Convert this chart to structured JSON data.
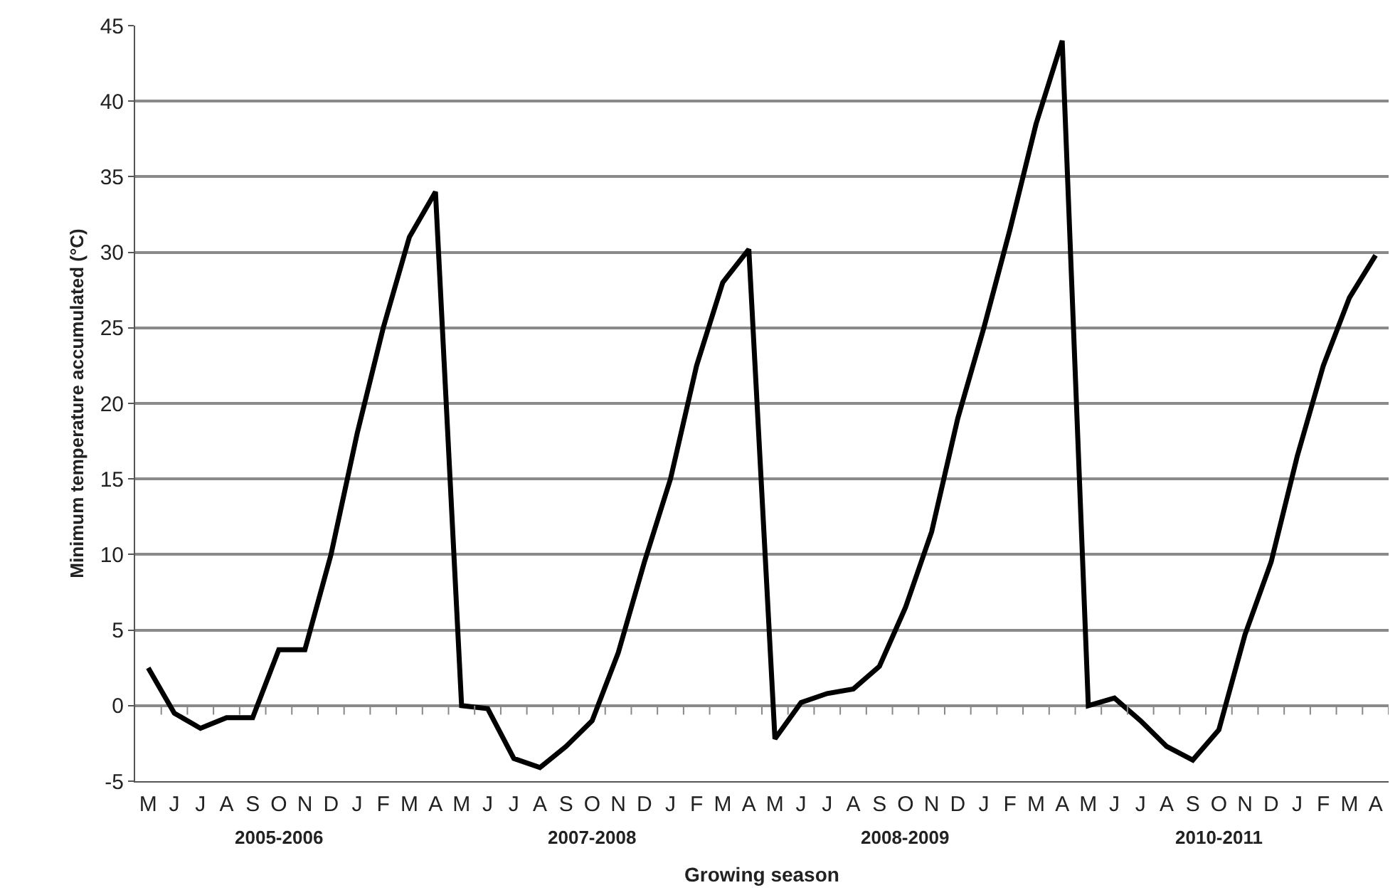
{
  "chart_data": {
    "type": "line",
    "xlabel": "Growing season",
    "ylabel": "Minimum temperature accumulated (°C)",
    "categories": [
      "M",
      "J",
      "J",
      "A",
      "S",
      "O",
      "N",
      "D",
      "J",
      "F",
      "M",
      "A",
      "M",
      "J",
      "J",
      "A",
      "S",
      "O",
      "N",
      "D",
      "J",
      "F",
      "M",
      "A",
      "M",
      "J",
      "J",
      "A",
      "S",
      "O",
      "N",
      "D",
      "J",
      "F",
      "M",
      "A",
      "M",
      "J",
      "J",
      "A",
      "S",
      "O",
      "N",
      "D",
      "J",
      "F",
      "M",
      "A"
    ],
    "series": [
      {
        "color": "#000000",
        "values": [
          2.5,
          -0.5,
          -1.5,
          -0.8,
          -0.8,
          3.7,
          3.7,
          10,
          18,
          25,
          31,
          34,
          0,
          -0.2,
          -3.5,
          -4.1,
          -2.7,
          -1,
          3.5,
          9.5,
          15,
          22.5,
          28,
          30.2,
          -2.2,
          0.2,
          0.8,
          1.1,
          2.6,
          6.5,
          11.5,
          19,
          25,
          31.5,
          38.5,
          44,
          0,
          0.5,
          -1,
          -2.7,
          -3.6,
          -1.6,
          4.7,
          9.5,
          16.5,
          22.5,
          27,
          29.8
        ]
      }
    ],
    "annotations": [
      "2005-2006",
      "2007-2008",
      "2008-2009",
      "2010-2011"
    ],
    "ylim": [
      -5,
      45
    ],
    "yticks": [
      -5,
      0,
      5,
      10,
      15,
      20,
      25,
      30,
      35,
      40,
      45
    ],
    "grid": "y",
    "marker": "none",
    "line_style": "solid"
  }
}
